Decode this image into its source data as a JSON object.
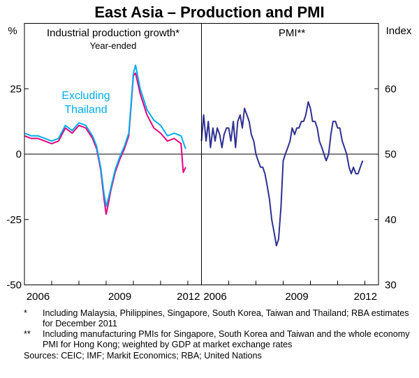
{
  "chart_data": {
    "title": "East Asia – Production and PMI",
    "type": "line",
    "left_unit": "%",
    "right_unit": "Index",
    "left_axis": {
      "ylim": [
        -50,
        50
      ],
      "ticks": [
        "25",
        "0",
        "-25",
        "-50"
      ],
      "tick_values": [
        25,
        0,
        -25,
        -50
      ]
    },
    "right_axis": {
      "ylim": [
        30,
        70
      ],
      "ticks": [
        "60",
        "50",
        "40",
        "30"
      ],
      "tick_values": [
        60,
        50,
        40,
        30
      ]
    },
    "xlim": [
      2006.0,
      2012.5
    ],
    "x_ticks": [
      {
        "label": "2006",
        "value": 2006.5
      },
      {
        "label": "2009",
        "value": 2009.5
      },
      {
        "label": "2012",
        "value": 2012.5
      }
    ],
    "panels": [
      {
        "title": "Industrial production growth*",
        "subtitle": "Year-ended",
        "annotation": "Excluding\nThailand",
        "series": [
          {
            "name": "Excluding Thailand",
            "color": "#00aeef",
            "x": [
              2006.0,
              2006.25,
              2006.5,
              2006.75,
              2007.0,
              2007.25,
              2007.5,
              2007.75,
              2008.0,
              2008.25,
              2008.5,
              2008.65,
              2008.8,
              2008.92,
              2009.0,
              2009.08,
              2009.17,
              2009.33,
              2009.5,
              2009.67,
              2009.83,
              2009.92,
              2010.0,
              2010.08,
              2010.25,
              2010.5,
              2010.75,
              2011.0,
              2011.25,
              2011.5,
              2011.75,
              2011.92
            ],
            "y": [
              8,
              7,
              7,
              6,
              5,
              6,
              11,
              9,
              12,
              11,
              7,
              3,
              -5,
              -15,
              -20,
              -17,
              -13,
              -6,
              -1,
              3,
              8,
              20,
              31,
              34,
              25,
              17,
              13,
              11,
              7,
              8,
              7,
              2
            ]
          },
          {
            "name": "",
            "color": "#e6007e",
            "x": [
              2006.0,
              2006.25,
              2006.5,
              2006.75,
              2007.0,
              2007.25,
              2007.5,
              2007.75,
              2008.0,
              2008.25,
              2008.5,
              2008.65,
              2008.8,
              2008.92,
              2009.0,
              2009.08,
              2009.17,
              2009.33,
              2009.5,
              2009.67,
              2009.83,
              2009.92,
              2010.0,
              2010.08,
              2010.25,
              2010.5,
              2010.75,
              2011.0,
              2011.25,
              2011.5,
              2011.75,
              2011.83,
              2011.92
            ],
            "y": [
              7,
              6,
              6,
              5,
              4,
              5,
              10,
              8,
              11,
              10,
              6,
              2,
              -6,
              -17,
              -23,
              -19,
              -14,
              -7,
              -2,
              2,
              7,
              19,
              30,
              31,
              23,
              15,
              10,
              8,
              5,
              6,
              4,
              -7,
              -5
            ]
          }
        ]
      },
      {
        "title": "PMI**",
        "series": [
          {
            "name": "",
            "color": "#2e3192",
            "x": [
              2006.0,
              2006.08,
              2006.17,
              2006.25,
              2006.33,
              2006.42,
              2006.5,
              2006.58,
              2006.67,
              2006.75,
              2006.83,
              2006.92,
              2007.0,
              2007.08,
              2007.17,
              2007.25,
              2007.33,
              2007.42,
              2007.5,
              2007.58,
              2007.67,
              2007.75,
              2007.83,
              2007.92,
              2008.0,
              2008.08,
              2008.17,
              2008.25,
              2008.33,
              2008.42,
              2008.5,
              2008.58,
              2008.67,
              2008.75,
              2008.83,
              2008.92,
              2009.0,
              2009.08,
              2009.17,
              2009.25,
              2009.33,
              2009.42,
              2009.5,
              2009.58,
              2009.67,
              2009.75,
              2009.83,
              2009.92,
              2010.0,
              2010.08,
              2010.17,
              2010.25,
              2010.33,
              2010.42,
              2010.5,
              2010.58,
              2010.67,
              2010.75,
              2010.83,
              2010.92,
              2011.0,
              2011.08,
              2011.17,
              2011.25,
              2011.33,
              2011.42,
              2011.5,
              2011.58,
              2011.67,
              2011.75,
              2011.83,
              2011.92
            ],
            "y": [
              52,
              56,
              52,
              55,
              51,
              54,
              52,
              54,
              53,
              51,
              53,
              54,
              54,
              52,
              55,
              51,
              55,
              56,
              54,
              57,
              56,
              55,
              53,
              52,
              50,
              49,
              48,
              48,
              47,
              45,
              43,
              40,
              38,
              36,
              37,
              42,
              49,
              50,
              51,
              52,
              54,
              53,
              54,
              54,
              55,
              55,
              56,
              58,
              57,
              55,
              55,
              54,
              52,
              51,
              50,
              49,
              50,
              53,
              55,
              55,
              54,
              54,
              52,
              51,
              50,
              48,
              47,
              48,
              47,
              47,
              48,
              49
            ]
          }
        ]
      }
    ]
  },
  "footnotes": [
    {
      "mark": "*",
      "text": "Including Malaysia, Philippines, Singapore, South Korea, Taiwan and Thailand; RBA estimates for December 2011"
    },
    {
      "mark": "**",
      "text": "Including manufacturing PMIs for Singapore, South Korea and Taiwan and the whole economy PMI for Hong Kong; weighted by GDP at market exchange rates"
    }
  ],
  "sources": "Sources: CEIC; IMF; Markit Economics; RBA; United Nations"
}
